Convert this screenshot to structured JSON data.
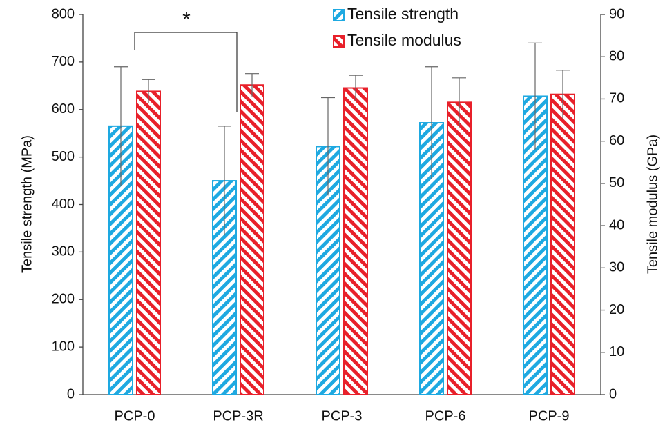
{
  "chart_data": {
    "type": "bar",
    "categories": [
      "PCP-0",
      "PCP-3R",
      "PCP-3",
      "PCP-6",
      "PCP-9"
    ],
    "ylabel": "Tensile strength (MPa)",
    "y2label": "Tensile modulus  (GPa)",
    "ylim": [
      0,
      800
    ],
    "yticks": [
      0,
      100,
      200,
      300,
      400,
      500,
      600,
      700,
      800
    ],
    "y2lim": [
      0,
      90
    ],
    "y2ticks": [
      0,
      10,
      20,
      30,
      40,
      50,
      60,
      70,
      80,
      90
    ],
    "series": [
      {
        "name": "Tensile strength",
        "color": "#1ea9e1",
        "hatch": "/",
        "values": [
          565,
          450,
          522,
          572,
          628
        ],
        "errors": [
          125,
          115,
          103,
          118,
          112
        ]
      },
      {
        "name": "Tensile modulus",
        "color": "#e8202a",
        "hatch": "\\",
        "axis": "y2",
        "values": [
          71.8,
          73.3,
          72.6,
          69.2,
          71.1
        ],
        "errors": [
          2.8,
          2.7,
          3.0,
          5.8,
          5.7
        ]
      }
    ],
    "annotations": [
      "*"
    ],
    "legend": "top"
  }
}
